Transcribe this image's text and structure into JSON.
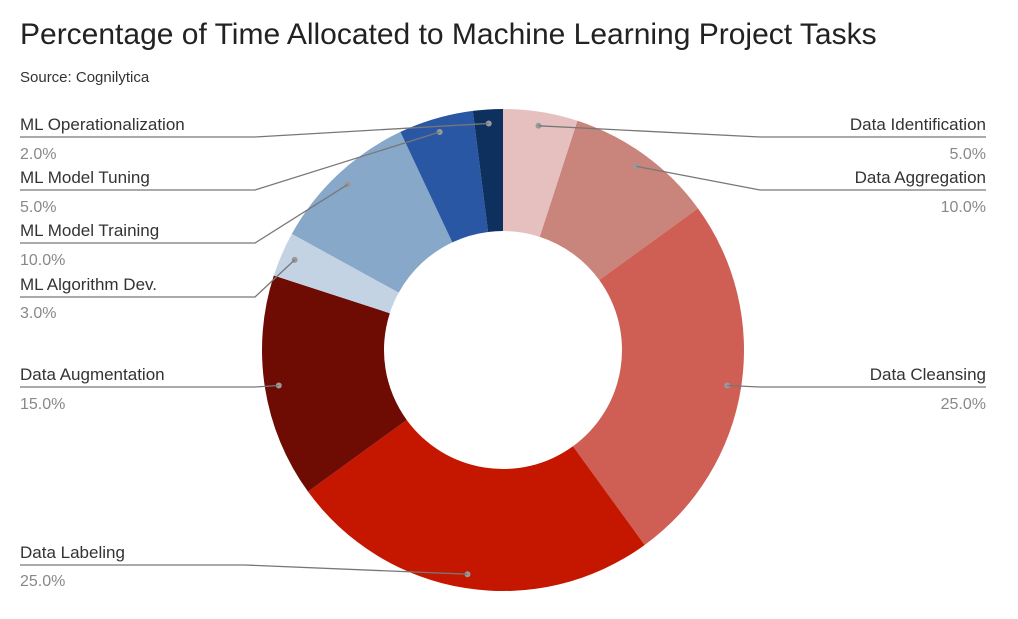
{
  "chart_data": {
    "type": "pie",
    "title": "Percentage of Time Allocated to Machine Learning Project Tasks",
    "subtitle": "Source: Cognilytica",
    "donut": true,
    "slices": [
      {
        "label": "Data Identification",
        "value": 5.0,
        "value_label": "5.0%",
        "color": "#e6c0be"
      },
      {
        "label": "Data Aggregation",
        "value": 10.0,
        "value_label": "10.0%",
        "color": "#c9847c"
      },
      {
        "label": "Data Cleansing",
        "value": 25.0,
        "value_label": "25.0%",
        "color": "#cf5f55"
      },
      {
        "label": "Data Labeling",
        "value": 25.0,
        "value_label": "25.0%",
        "color": "#c51600"
      },
      {
        "label": "Data Augmentation",
        "value": 15.0,
        "value_label": "15.0%",
        "color": "#6e0b02"
      },
      {
        "label": "ML Algorithm Dev.",
        "value": 3.0,
        "value_label": "3.0%",
        "color": "#c3d3e4"
      },
      {
        "label": "ML Model Training",
        "value": 10.0,
        "value_label": "10.0%",
        "color": "#87a8c9"
      },
      {
        "label": "ML Model Tuning",
        "value": 5.0,
        "value_label": "5.0%",
        "color": "#2a57a4"
      },
      {
        "label": "ML Operationalization",
        "value": 2.0,
        "value_label": "2.0%",
        "color": "#0d305f"
      }
    ]
  }
}
